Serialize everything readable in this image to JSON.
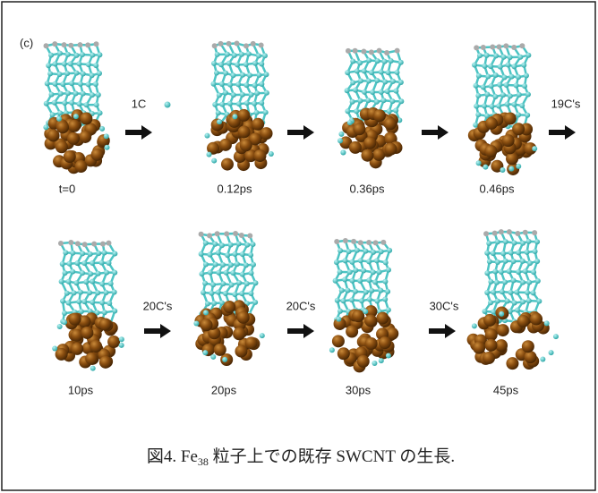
{
  "panel_label": "(c)",
  "rows": [
    {
      "snapshots": [
        "t=0",
        "0.12ps",
        "0.36ps",
        "0.46ps"
      ],
      "arrows": [
        "1C",
        "",
        "",
        "19C's"
      ]
    },
    {
      "snapshots": [
        "10ps",
        "20ps",
        "30ps",
        "45ps"
      ],
      "arrows": [
        "20C's",
        "20C's",
        "30C's"
      ]
    }
  ],
  "caption": {
    "prefix": "図4.  Fe",
    "subscript": "38",
    "suffix": " 粒子上での既存 SWCNT の生長."
  }
}
